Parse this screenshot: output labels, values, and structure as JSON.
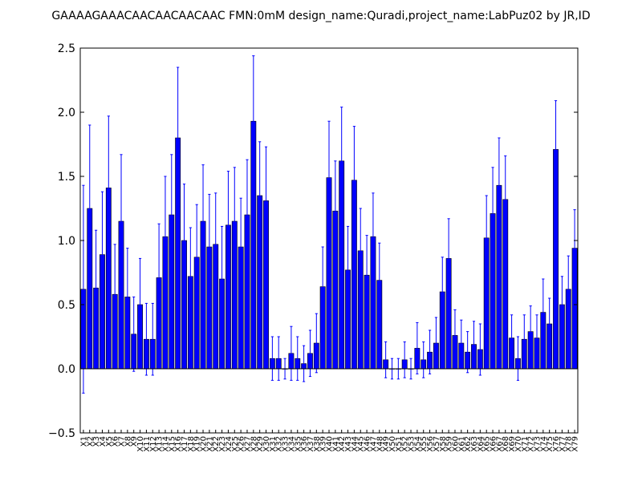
{
  "chart_data": {
    "type": "bar",
    "title": "GAAAAGAAACAACAACAACAAC  FMN:0mM  design_name:Quradi,project_name:LabPuz02 by JR,ID",
    "xlabel": "",
    "ylabel": "",
    "ylim": [
      -0.5,
      2.5
    ],
    "yticks": [
      "−0.5",
      "0.0",
      "0.5",
      "1.0",
      "1.5",
      "2.0",
      "2.5"
    ],
    "grid": false,
    "categories": [
      "X1",
      "X2",
      "X3",
      "X4",
      "X5",
      "X6",
      "X7",
      "X8",
      "X9",
      "X10",
      "X11",
      "X12",
      "X13",
      "X14",
      "X15",
      "X16",
      "X17",
      "X18",
      "X19",
      "X20",
      "X21",
      "X22",
      "X23",
      "X24",
      "X25",
      "X26",
      "X27",
      "X28",
      "X29",
      "X30",
      "X31",
      "X32",
      "X33",
      "X34",
      "X35",
      "X36",
      "X37",
      "X38",
      "X39",
      "X40",
      "X41",
      "X42",
      "X43",
      "X44",
      "X45",
      "X46",
      "X47",
      "X48",
      "X49",
      "X50",
      "X51",
      "X52",
      "X53",
      "X54",
      "X55",
      "X56",
      "X57",
      "X58",
      "X59",
      "X60",
      "X61",
      "X62",
      "X63",
      "X64",
      "X65",
      "X66",
      "X67",
      "X68",
      "X69",
      "X70",
      "X71",
      "X72",
      "X73",
      "X74",
      "X75",
      "X76",
      "X77",
      "X78",
      "X79"
    ],
    "values": [
      0.62,
      1.25,
      0.63,
      0.89,
      1.41,
      0.58,
      1.15,
      0.56,
      0.27,
      0.5,
      0.23,
      0.23,
      0.71,
      1.03,
      1.2,
      1.8,
      1.0,
      0.72,
      0.87,
      1.15,
      0.95,
      0.97,
      0.7,
      1.12,
      1.15,
      0.95,
      1.2,
      1.93,
      1.35,
      1.31,
      0.08,
      0.08,
      0.0,
      0.12,
      0.08,
      0.04,
      0.12,
      0.2,
      0.64,
      1.49,
      1.23,
      1.62,
      0.77,
      1.47,
      0.92,
      0.73,
      1.03,
      0.69,
      0.07,
      0.0,
      0.0,
      0.07,
      0.0,
      0.16,
      0.07,
      0.13,
      0.2,
      0.6,
      0.86,
      0.26,
      0.2,
      0.13,
      0.19,
      0.15,
      1.02,
      1.21,
      1.43,
      1.32,
      0.24,
      0.08,
      0.23,
      0.29,
      0.24,
      0.44,
      0.35,
      1.71,
      0.5,
      0.62,
      0.94
    ],
    "errors": [
      0.81,
      0.65,
      0.45,
      0.49,
      0.56,
      0.39,
      0.52,
      0.38,
      0.29,
      0.36,
      0.28,
      0.28,
      0.42,
      0.47,
      0.47,
      0.55,
      0.44,
      0.38,
      0.41,
      0.44,
      0.41,
      0.4,
      0.41,
      0.42,
      0.42,
      0.38,
      0.43,
      0.51,
      0.42,
      0.42,
      0.17,
      0.17,
      0.08,
      0.21,
      0.17,
      0.14,
      0.18,
      0.23,
      0.31,
      0.44,
      0.39,
      0.42,
      0.34,
      0.42,
      0.33,
      0.31,
      0.34,
      0.29,
      0.14,
      0.08,
      0.08,
      0.14,
      0.08,
      0.2,
      0.14,
      0.17,
      0.2,
      0.27,
      0.31,
      0.2,
      0.18,
      0.16,
      0.18,
      0.2,
      0.33,
      0.36,
      0.37,
      0.34,
      0.18,
      0.17,
      0.19,
      0.2,
      0.18,
      0.26,
      0.2,
      0.38,
      0.22,
      0.26,
      0.3
    ]
  }
}
